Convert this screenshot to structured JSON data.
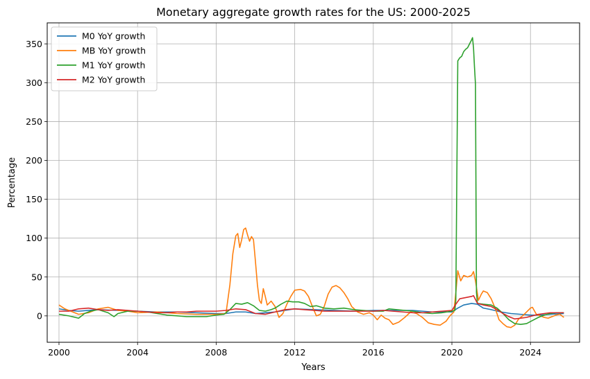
{
  "chart_data": {
    "type": "line",
    "title": "Monetary aggregate growth rates for the US: 2000-2025",
    "xlabel": "Years",
    "ylabel": "Percentage",
    "xlim": [
      1999.4,
      2026.5
    ],
    "ylim": [
      -34,
      377
    ],
    "xticks": [
      2000,
      2004,
      2008,
      2012,
      2016,
      2020,
      2024
    ],
    "yticks": [
      0,
      50,
      100,
      150,
      200,
      250,
      300,
      350
    ],
    "grid": true,
    "legend_position": "top-left",
    "series": [
      {
        "name": "M0 YoY growth",
        "color": "#1f77b4",
        "points": [
          [
            2000,
            9
          ],
          [
            2000.5,
            7
          ],
          [
            2001,
            6
          ],
          [
            2002,
            8
          ],
          [
            2003,
            7
          ],
          [
            2004,
            6
          ],
          [
            2005,
            5
          ],
          [
            2006,
            5
          ],
          [
            2007,
            4
          ],
          [
            2008,
            3
          ],
          [
            2008.5,
            3
          ],
          [
            2009,
            5
          ],
          [
            2009.5,
            5
          ],
          [
            2010,
            3
          ],
          [
            2011,
            5
          ],
          [
            2012,
            9
          ],
          [
            2013,
            8
          ],
          [
            2014,
            7
          ],
          [
            2015,
            6
          ],
          [
            2016,
            7
          ],
          [
            2017,
            7
          ],
          [
            2018,
            7
          ],
          [
            2019,
            5
          ],
          [
            2020,
            5
          ],
          [
            2020.3,
            10
          ],
          [
            2020.6,
            14
          ],
          [
            2021,
            16
          ],
          [
            2021.3,
            15
          ],
          [
            2021.6,
            10
          ],
          [
            2022,
            8
          ],
          [
            2022.5,
            5
          ],
          [
            2023,
            3
          ],
          [
            2023.5,
            2
          ],
          [
            2024,
            1
          ],
          [
            2024.5,
            1
          ],
          [
            2025,
            2
          ],
          [
            2025.7,
            3
          ]
        ]
      },
      {
        "name": "MB YoY growth",
        "color": "#ff7f0e",
        "points": [
          [
            2000,
            14
          ],
          [
            2000.3,
            9
          ],
          [
            2000.6,
            6
          ],
          [
            2001,
            2
          ],
          [
            2001.5,
            4
          ],
          [
            2002,
            9
          ],
          [
            2002.5,
            11
          ],
          [
            2003,
            7
          ],
          [
            2003.5,
            6
          ],
          [
            2004,
            4
          ],
          [
            2005,
            5
          ],
          [
            2006,
            3
          ],
          [
            2007,
            2
          ],
          [
            2008,
            2
          ],
          [
            2008.5,
            3
          ],
          [
            2008.7,
            40
          ],
          [
            2008.85,
            80
          ],
          [
            2009,
            103
          ],
          [
            2009.1,
            106
          ],
          [
            2009.2,
            88
          ],
          [
            2009.3,
            98
          ],
          [
            2009.4,
            111
          ],
          [
            2009.5,
            113
          ],
          [
            2009.6,
            104
          ],
          [
            2009.7,
            96
          ],
          [
            2009.8,
            102
          ],
          [
            2009.9,
            98
          ],
          [
            2010,
            70
          ],
          [
            2010.1,
            40
          ],
          [
            2010.2,
            20
          ],
          [
            2010.3,
            16
          ],
          [
            2010.4,
            35
          ],
          [
            2010.5,
            25
          ],
          [
            2010.6,
            14
          ],
          [
            2010.8,
            19
          ],
          [
            2011,
            12
          ],
          [
            2011.2,
            -2
          ],
          [
            2011.4,
            3
          ],
          [
            2011.6,
            15
          ],
          [
            2011.8,
            25
          ],
          [
            2012,
            33
          ],
          [
            2012.3,
            34
          ],
          [
            2012.5,
            32
          ],
          [
            2012.7,
            25
          ],
          [
            2012.9,
            12
          ],
          [
            2013.1,
            0
          ],
          [
            2013.3,
            2
          ],
          [
            2013.5,
            12
          ],
          [
            2013.7,
            28
          ],
          [
            2013.9,
            37
          ],
          [
            2014.1,
            39
          ],
          [
            2014.3,
            36
          ],
          [
            2014.5,
            30
          ],
          [
            2014.7,
            22
          ],
          [
            2014.9,
            12
          ],
          [
            2015.2,
            5
          ],
          [
            2015.5,
            2
          ],
          [
            2015.8,
            4
          ],
          [
            2016,
            1
          ],
          [
            2016.2,
            -5
          ],
          [
            2016.4,
            1
          ],
          [
            2016.6,
            -3
          ],
          [
            2016.8,
            -5
          ],
          [
            2017,
            -11
          ],
          [
            2017.3,
            -8
          ],
          [
            2017.6,
            -2
          ],
          [
            2017.9,
            5
          ],
          [
            2018.2,
            3
          ],
          [
            2018.5,
            -2
          ],
          [
            2018.8,
            -9
          ],
          [
            2019.1,
            -11
          ],
          [
            2019.4,
            -12
          ],
          [
            2019.7,
            -7
          ],
          [
            2019.9,
            0
          ],
          [
            2020.1,
            5
          ],
          [
            2020.2,
            30
          ],
          [
            2020.3,
            58
          ],
          [
            2020.45,
            45
          ],
          [
            2020.6,
            52
          ],
          [
            2020.8,
            50
          ],
          [
            2021,
            52
          ],
          [
            2021.1,
            57
          ],
          [
            2021.2,
            45
          ],
          [
            2021.35,
            20
          ],
          [
            2021.5,
            28
          ],
          [
            2021.6,
            32
          ],
          [
            2021.8,
            30
          ],
          [
            2022,
            22
          ],
          [
            2022.2,
            10
          ],
          [
            2022.4,
            -5
          ],
          [
            2022.6,
            -10
          ],
          [
            2022.8,
            -14
          ],
          [
            2023,
            -15
          ],
          [
            2023.2,
            -12
          ],
          [
            2023.4,
            -4
          ],
          [
            2023.6,
            0
          ],
          [
            2023.8,
            5
          ],
          [
            2024,
            10
          ],
          [
            2024.1,
            11
          ],
          [
            2024.3,
            2
          ],
          [
            2024.5,
            0
          ],
          [
            2024.7,
            -2
          ],
          [
            2024.9,
            -3
          ],
          [
            2025.1,
            -1
          ],
          [
            2025.3,
            1
          ],
          [
            2025.5,
            2
          ],
          [
            2025.7,
            -2
          ]
        ]
      },
      {
        "name": "M1 YoY growth",
        "color": "#2ca02c",
        "points": [
          [
            2000,
            2
          ],
          [
            2000.5,
            0
          ],
          [
            2001,
            -3
          ],
          [
            2001.3,
            3
          ],
          [
            2001.6,
            6
          ],
          [
            2002,
            8
          ],
          [
            2002.5,
            4
          ],
          [
            2002.8,
            -1
          ],
          [
            2003,
            3
          ],
          [
            2003.5,
            6
          ],
          [
            2004,
            6
          ],
          [
            2004.5,
            5
          ],
          [
            2005,
            3
          ],
          [
            2005.5,
            1
          ],
          [
            2006,
            0
          ],
          [
            2006.5,
            -1
          ],
          [
            2007,
            -1
          ],
          [
            2007.5,
            -1
          ],
          [
            2008,
            1
          ],
          [
            2008.4,
            2
          ],
          [
            2008.7,
            8
          ],
          [
            2009,
            16
          ],
          [
            2009.3,
            15
          ],
          [
            2009.6,
            17
          ],
          [
            2009.9,
            13
          ],
          [
            2010.2,
            7
          ],
          [
            2010.5,
            6
          ],
          [
            2010.8,
            8
          ],
          [
            2011,
            10
          ],
          [
            2011.3,
            15
          ],
          [
            2011.6,
            19
          ],
          [
            2011.9,
            18
          ],
          [
            2012.2,
            18
          ],
          [
            2012.5,
            16
          ],
          [
            2012.8,
            12
          ],
          [
            2013.1,
            13
          ],
          [
            2013.5,
            10
          ],
          [
            2014,
            9
          ],
          [
            2014.5,
            10
          ],
          [
            2015,
            8
          ],
          [
            2015.5,
            7
          ],
          [
            2016,
            6
          ],
          [
            2016.5,
            6
          ],
          [
            2016.8,
            9
          ],
          [
            2017.2,
            8
          ],
          [
            2017.6,
            7
          ],
          [
            2018,
            6
          ],
          [
            2018.5,
            4
          ],
          [
            2019,
            3
          ],
          [
            2019.5,
            4
          ],
          [
            2020,
            6
          ],
          [
            2020.15,
            7
          ],
          [
            2020.2,
            20
          ],
          [
            2020.3,
            328
          ],
          [
            2020.4,
            332
          ],
          [
            2020.5,
            334
          ],
          [
            2020.6,
            340
          ],
          [
            2020.7,
            343
          ],
          [
            2020.8,
            345
          ],
          [
            2020.9,
            350
          ],
          [
            2021,
            355
          ],
          [
            2021.05,
            358
          ],
          [
            2021.1,
            345
          ],
          [
            2021.15,
            320
          ],
          [
            2021.2,
            298
          ],
          [
            2021.25,
            30
          ],
          [
            2021.3,
            16
          ],
          [
            2021.6,
            15
          ],
          [
            2022,
            14
          ],
          [
            2022.3,
            10
          ],
          [
            2022.6,
            3
          ],
          [
            2022.9,
            -5
          ],
          [
            2023.2,
            -10
          ],
          [
            2023.5,
            -11
          ],
          [
            2023.8,
            -10
          ],
          [
            2024.1,
            -6
          ],
          [
            2024.4,
            -2
          ],
          [
            2024.7,
            1
          ],
          [
            2025,
            3
          ],
          [
            2025.3,
            4
          ],
          [
            2025.7,
            4
          ]
        ]
      },
      {
        "name": "M2 YoY growth",
        "color": "#d62728",
        "points": [
          [
            2000,
            6
          ],
          [
            2000.5,
            6
          ],
          [
            2001,
            9
          ],
          [
            2001.5,
            10
          ],
          [
            2002,
            8
          ],
          [
            2002.5,
            7
          ],
          [
            2003,
            8
          ],
          [
            2003.5,
            7
          ],
          [
            2004,
            6
          ],
          [
            2004.5,
            5
          ],
          [
            2005,
            4
          ],
          [
            2005.5,
            4
          ],
          [
            2006,
            5
          ],
          [
            2006.5,
            5
          ],
          [
            2007,
            6
          ],
          [
            2007.5,
            6
          ],
          [
            2008,
            6
          ],
          [
            2008.5,
            7
          ],
          [
            2009,
            9
          ],
          [
            2009.5,
            8
          ],
          [
            2010,
            3
          ],
          [
            2010.5,
            2
          ],
          [
            2011,
            5
          ],
          [
            2011.5,
            8
          ],
          [
            2012,
            9
          ],
          [
            2012.5,
            8
          ],
          [
            2013,
            7
          ],
          [
            2013.5,
            6
          ],
          [
            2014,
            6
          ],
          [
            2014.5,
            6
          ],
          [
            2015,
            6
          ],
          [
            2015.5,
            6
          ],
          [
            2016,
            6
          ],
          [
            2016.5,
            7
          ],
          [
            2017,
            6
          ],
          [
            2017.5,
            5
          ],
          [
            2018,
            4
          ],
          [
            2018.5,
            4
          ],
          [
            2019,
            5
          ],
          [
            2019.5,
            6
          ],
          [
            2020,
            7
          ],
          [
            2020.2,
            15
          ],
          [
            2020.4,
            22
          ],
          [
            2020.6,
            23
          ],
          [
            2020.8,
            24
          ],
          [
            2021,
            25
          ],
          [
            2021.1,
            26
          ],
          [
            2021.3,
            16
          ],
          [
            2021.6,
            14
          ],
          [
            2022,
            12
          ],
          [
            2022.3,
            8
          ],
          [
            2022.6,
            3
          ],
          [
            2022.9,
            -1
          ],
          [
            2023.2,
            -4
          ],
          [
            2023.5,
            -3
          ],
          [
            2023.8,
            -2
          ],
          [
            2024.1,
            0
          ],
          [
            2024.4,
            2
          ],
          [
            2024.7,
            3
          ],
          [
            2025,
            4
          ],
          [
            2025.3,
            4
          ],
          [
            2025.7,
            4
          ]
        ]
      }
    ]
  }
}
